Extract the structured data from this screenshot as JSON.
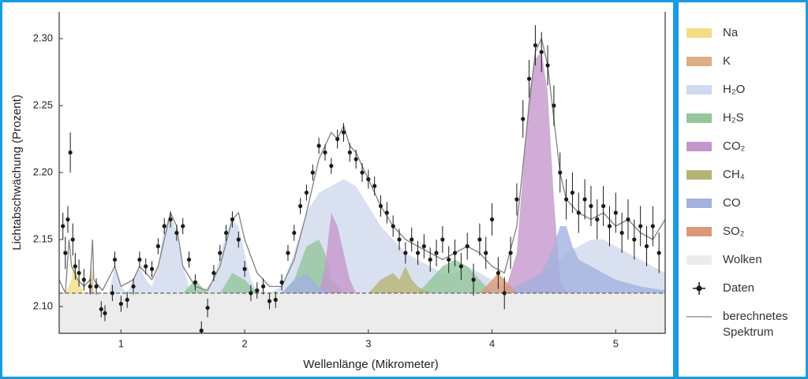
{
  "chart_data": {
    "type": "area",
    "xlabel": "Wellenlänge (Mikrometer)",
    "ylabel": "Lichtabschwächung (Prozent)",
    "xlim": [
      0.5,
      5.4
    ],
    "ylim": [
      2.08,
      2.32
    ],
    "xticks": [
      1,
      2,
      3,
      4,
      5
    ],
    "yticks": [
      {
        "value": 2.1,
        "label": "2.10"
      },
      2.15,
      {
        "value": 2.2,
        "label": "2.20"
      },
      2.25,
      {
        "value": 2.3,
        "label": "2.30"
      }
    ],
    "series": [
      {
        "name": "Na",
        "color": "#f3dc86",
        "x": [
          0.55,
          0.6,
          0.62,
          0.65,
          0.7
        ],
        "values": [
          2.11,
          2.12,
          2.135,
          2.12,
          2.11
        ]
      },
      {
        "name": "K",
        "color": "#dcae86",
        "x": [
          0.74,
          0.765,
          0.77,
          0.78
        ],
        "values": [
          2.11,
          2.13,
          2.125,
          2.11
        ]
      },
      {
        "name": "H₂O",
        "color": "#d0d9ee",
        "x": [
          0.9,
          0.95,
          1.0,
          1.05,
          1.1,
          1.15,
          1.2,
          1.25,
          1.3,
          1.35,
          1.4,
          1.45,
          1.5,
          1.55,
          1.65,
          1.75,
          1.85,
          1.9,
          1.95,
          2.0,
          2.05,
          2.1,
          2.2,
          2.3,
          2.4,
          2.5,
          2.6,
          2.7,
          2.8,
          2.9,
          3.0,
          3.1,
          3.2,
          3.3,
          3.4,
          3.5,
          3.6,
          3.7,
          3.8,
          3.9,
          4.0,
          4.1,
          4.2,
          4.3,
          4.4,
          4.5,
          4.6,
          4.7,
          4.8,
          4.9,
          5.0,
          5.1,
          5.2,
          5.3,
          5.4
        ],
        "values": [
          2.11,
          2.13,
          2.115,
          2.11,
          2.12,
          2.13,
          2.12,
          2.115,
          2.13,
          2.16,
          2.17,
          2.155,
          2.13,
          2.115,
          2.11,
          2.12,
          2.155,
          2.165,
          2.16,
          2.14,
          2.12,
          2.112,
          2.11,
          2.115,
          2.14,
          2.17,
          2.185,
          2.19,
          2.195,
          2.19,
          2.175,
          2.16,
          2.15,
          2.14,
          2.135,
          2.13,
          2.125,
          2.125,
          2.13,
          2.125,
          2.12,
          2.115,
          2.115,
          2.12,
          2.125,
          2.13,
          2.14,
          2.145,
          2.15,
          2.15,
          2.145,
          2.14,
          2.135,
          2.13,
          2.125
        ]
      },
      {
        "name": "H₂S",
        "color": "#94c59c",
        "x": [
          1.5,
          1.6,
          1.7,
          1.8,
          1.9,
          2.0,
          2.1,
          2.3,
          2.4,
          2.5,
          2.6,
          2.65,
          2.7,
          2.8,
          3.4,
          3.5,
          3.6,
          3.7,
          3.8,
          3.9,
          4.0
        ],
        "values": [
          2.11,
          2.12,
          2.11,
          2.11,
          2.125,
          2.12,
          2.11,
          2.11,
          2.12,
          2.145,
          2.15,
          2.14,
          2.12,
          2.11,
          2.11,
          2.12,
          2.13,
          2.135,
          2.13,
          2.12,
          2.11
        ]
      },
      {
        "name": "CO₂",
        "color": "#c497cc",
        "x": [
          2.6,
          2.65,
          2.7,
          2.75,
          2.8,
          2.85,
          2.9,
          3.0,
          3.5,
          4.1,
          4.2,
          4.25,
          4.3,
          4.35,
          4.4,
          4.45,
          4.5,
          4.55,
          4.6
        ],
        "values": [
          2.11,
          2.13,
          2.17,
          2.16,
          2.14,
          2.12,
          2.11,
          2.11,
          null,
          2.11,
          2.14,
          2.2,
          2.26,
          2.285,
          2.29,
          2.26,
          2.18,
          2.12,
          2.11
        ]
      },
      {
        "name": "CH₄",
        "color": "#b5b476",
        "x": [
          3.0,
          3.1,
          3.2,
          3.25,
          3.3,
          3.35,
          3.4,
          3.5,
          3.6
        ],
        "values": [
          2.11,
          2.12,
          2.125,
          2.12,
          2.13,
          2.12,
          2.115,
          2.11,
          2.11
        ]
      },
      {
        "name": "CO",
        "color": "#a2b1de",
        "x": [
          2.3,
          2.4,
          2.5,
          2.55,
          2.6,
          2.7,
          3.5,
          4.1,
          4.3,
          4.4,
          4.5,
          4.55,
          4.6,
          4.65,
          4.7,
          4.8,
          5.0,
          5.2,
          5.4
        ],
        "values": [
          2.11,
          2.12,
          2.125,
          2.12,
          2.115,
          2.11,
          null,
          2.11,
          2.12,
          2.125,
          2.145,
          2.16,
          2.16,
          2.145,
          2.135,
          2.13,
          2.12,
          2.115,
          2.112
        ]
      },
      {
        "name": "SO₂",
        "color": "#dc9878",
        "x": [
          3.9,
          4.0,
          4.05,
          4.1,
          4.15,
          4.2
        ],
        "values": [
          2.11,
          2.12,
          2.125,
          2.12,
          2.115,
          2.11
        ]
      }
    ],
    "clouds": {
      "name": "Wolken",
      "color": "#ececec",
      "value": 2.11
    },
    "data": {
      "name": "Daten",
      "color": "#1a1a1a",
      "x": [
        0.53,
        0.55,
        0.57,
        0.59,
        0.61,
        0.63,
        0.66,
        0.7,
        0.75,
        0.8,
        0.84,
        0.87,
        0.93,
        0.95,
        1.0,
        1.05,
        1.1,
        1.15,
        1.2,
        1.25,
        1.3,
        1.35,
        1.4,
        1.45,
        1.5,
        1.55,
        1.6,
        1.65,
        1.7,
        1.75,
        1.8,
        1.85,
        1.9,
        1.95,
        2.0,
        2.05,
        2.1,
        2.15,
        2.2,
        2.25,
        2.3,
        2.35,
        2.4,
        2.45,
        2.5,
        2.55,
        2.6,
        2.65,
        2.7,
        2.75,
        2.8,
        2.85,
        2.9,
        2.95,
        3.0,
        3.05,
        3.1,
        3.15,
        3.2,
        3.25,
        3.3,
        3.35,
        3.4,
        3.45,
        3.5,
        3.55,
        3.6,
        3.65,
        3.7,
        3.75,
        3.8,
        3.85,
        3.9,
        3.95,
        4.0,
        4.05,
        4.1,
        4.15,
        4.2,
        4.25,
        4.3,
        4.35,
        4.4,
        4.45,
        4.5,
        4.55,
        4.6,
        4.65,
        4.7,
        4.75,
        4.8,
        4.85,
        4.9,
        4.95,
        5.0,
        5.05,
        5.1,
        5.15,
        5.2,
        5.25,
        5.3,
        5.35
      ],
      "values": [
        2.16,
        2.14,
        2.165,
        2.215,
        2.15,
        2.13,
        2.125,
        2.12,
        2.115,
        2.115,
        2.098,
        2.095,
        2.11,
        2.135,
        2.102,
        2.105,
        2.115,
        2.135,
        2.13,
        2.128,
        2.145,
        2.16,
        2.165,
        2.155,
        2.16,
        2.135,
        2.118,
        2.082,
        2.099,
        2.125,
        2.14,
        2.155,
        2.165,
        2.15,
        2.128,
        2.11,
        2.112,
        2.115,
        2.104,
        2.105,
        2.118,
        2.14,
        2.155,
        2.175,
        2.185,
        2.2,
        2.22,
        2.215,
        2.205,
        2.225,
        2.23,
        2.215,
        2.21,
        2.2,
        2.195,
        2.19,
        2.175,
        2.17,
        2.16,
        2.15,
        2.14,
        2.15,
        2.14,
        2.145,
        2.135,
        2.14,
        2.15,
        2.135,
        2.14,
        2.13,
        2.145,
        2.12,
        2.15,
        2.14,
        2.165,
        2.125,
        2.11,
        2.14,
        2.18,
        2.24,
        2.27,
        2.295,
        2.29,
        2.28,
        2.25,
        2.2,
        2.18,
        2.185,
        2.17,
        2.18,
        2.175,
        2.165,
        2.175,
        2.16,
        2.17,
        2.155,
        2.165,
        2.15,
        2.16,
        2.145,
        2.16,
        2.14
      ],
      "errors": [
        0.01,
        0.012,
        0.01,
        0.015,
        0.012,
        0.01,
        0.01,
        0.008,
        0.006,
        0.006,
        0.006,
        0.006,
        0.006,
        0.006,
        0.006,
        0.006,
        0.006,
        0.006,
        0.006,
        0.006,
        0.006,
        0.006,
        0.006,
        0.006,
        0.006,
        0.006,
        0.006,
        0.007,
        0.007,
        0.006,
        0.006,
        0.006,
        0.006,
        0.006,
        0.006,
        0.006,
        0.006,
        0.006,
        0.006,
        0.006,
        0.006,
        0.006,
        0.006,
        0.006,
        0.006,
        0.006,
        0.006,
        0.006,
        0.006,
        0.007,
        0.007,
        0.007,
        0.007,
        0.007,
        0.007,
        0.007,
        0.008,
        0.008,
        0.008,
        0.008,
        0.008,
        0.009,
        0.009,
        0.009,
        0.009,
        0.01,
        0.01,
        0.01,
        0.01,
        0.01,
        0.01,
        0.012,
        0.012,
        0.012,
        0.012,
        0.012,
        0.012,
        0.012,
        0.012,
        0.014,
        0.014,
        0.015,
        0.015,
        0.015,
        0.015,
        0.015,
        0.015,
        0.015,
        0.015,
        0.015,
        0.015,
        0.015,
        0.015,
        0.015,
        0.015,
        0.015,
        0.015,
        0.015,
        0.015,
        0.015,
        0.015,
        0.015
      ]
    },
    "model": {
      "name": "berechnetes Spektrum",
      "color": "#808080",
      "x": [
        0.5,
        0.55,
        0.58,
        0.6,
        0.65,
        0.7,
        0.75,
        0.77,
        0.78,
        0.85,
        0.95,
        1.0,
        1.1,
        1.15,
        1.25,
        1.3,
        1.4,
        1.45,
        1.5,
        1.6,
        1.7,
        1.8,
        1.9,
        1.95,
        2.0,
        2.1,
        2.2,
        2.3,
        2.4,
        2.5,
        2.6,
        2.7,
        2.75,
        2.8,
        2.85,
        2.9,
        3.0,
        3.1,
        3.2,
        3.3,
        3.4,
        3.5,
        3.6,
        3.7,
        3.8,
        3.9,
        4.0,
        4.1,
        4.2,
        4.3,
        4.35,
        4.4,
        4.45,
        4.5,
        4.55,
        4.6,
        4.7,
        4.8,
        4.9,
        5.0,
        5.1,
        5.2,
        5.3,
        5.4
      ],
      "values": [
        2.12,
        2.11,
        2.15,
        2.13,
        2.12,
        2.115,
        2.12,
        2.15,
        2.12,
        2.112,
        2.13,
        2.115,
        2.12,
        2.13,
        2.12,
        2.13,
        2.17,
        2.16,
        2.13,
        2.115,
        2.112,
        2.13,
        2.165,
        2.17,
        2.15,
        2.125,
        2.115,
        2.115,
        2.135,
        2.17,
        2.21,
        2.23,
        2.225,
        2.235,
        2.22,
        2.215,
        2.195,
        2.175,
        2.16,
        2.15,
        2.145,
        2.14,
        2.135,
        2.14,
        2.145,
        2.14,
        2.13,
        2.125,
        2.16,
        2.25,
        2.29,
        2.3,
        2.28,
        2.24,
        2.2,
        2.18,
        2.17,
        2.165,
        2.17,
        2.16,
        2.165,
        2.155,
        2.15,
        2.165
      ]
    }
  }
}
